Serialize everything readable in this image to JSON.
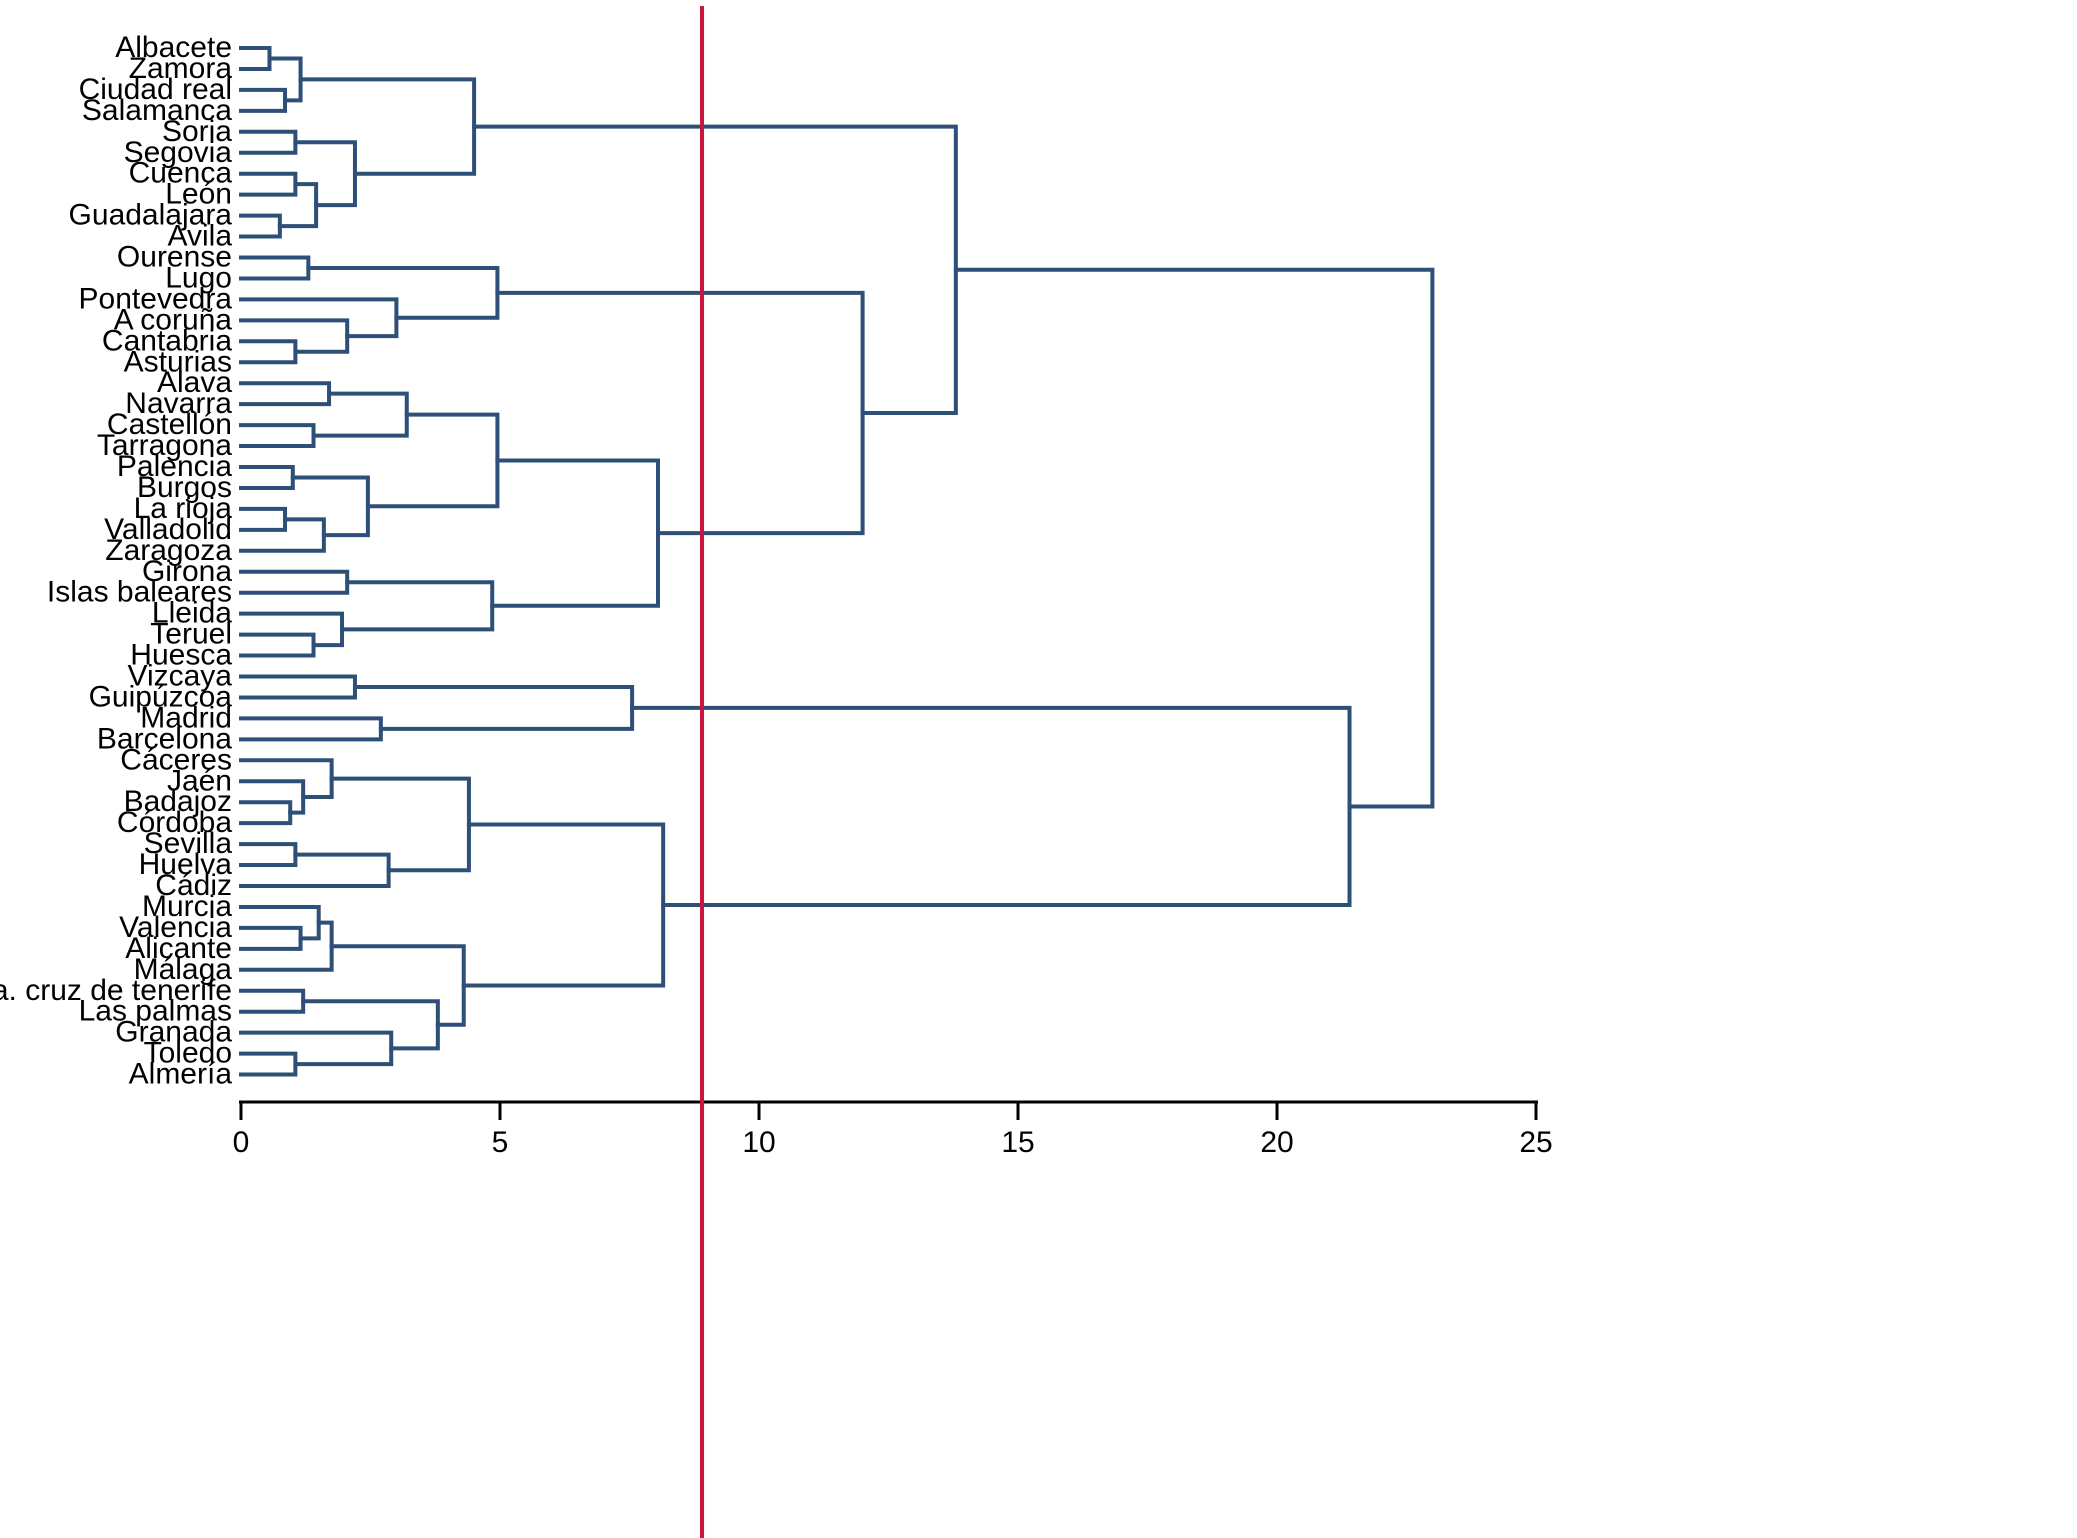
{
  "chart_data": {
    "type": "dendrogram",
    "title": "",
    "xlabel": "",
    "ylabel": "",
    "orientation": "horizontal",
    "xlim": [
      0,
      25
    ],
    "x_ticks": [
      "0",
      "5",
      "10",
      "15",
      "20",
      "25"
    ],
    "cut_height": 8.9,
    "colors": {
      "links": "#2d4f78",
      "cut_line": "#c8163f",
      "axis": "#000000"
    },
    "leaves": [
      "Albacete",
      "Zamora",
      "Ciudad real",
      "Salamanca",
      "Soria",
      "Segovia",
      "Cuenca",
      "León",
      "Guadalajara",
      "Avila",
      "Ourense",
      "Lugo",
      "Pontevedra",
      "A coruña",
      "Cantabria",
      "Asturias",
      "Alava",
      "Navarra",
      "Castellón",
      "Tarragona",
      "Palencia",
      "Burgos",
      "La rioja",
      "Valladolid",
      "Zaragoza",
      "Girona",
      "Islas baleares",
      "Lleida",
      "Teruel",
      "Huesca",
      "Vizcaya",
      "Guipúzcoa",
      "Madrid",
      "Barcelona",
      "Cáceres",
      "Jaén",
      "Badajoz",
      "Córdoba",
      "Sevilla",
      "Huelva",
      "Cádiz",
      "Murcia",
      "Valencia",
      "Alicante",
      "Málaga",
      "Sta. cruz de tenerife",
      "Las palmas",
      "Granada",
      "Toledo",
      "Almería"
    ],
    "merges": [
      [
        0,
        1,
        0.55
      ],
      [
        2,
        3,
        0.85
      ],
      [
        50,
        51,
        1.15
      ],
      [
        4,
        5,
        1.05
      ],
      [
        6,
        7,
        1.05
      ],
      [
        8,
        9,
        0.75
      ],
      [
        54,
        55,
        1.45
      ],
      [
        53,
        56,
        2.2
      ],
      [
        52,
        57,
        4.5
      ],
      [
        10,
        11,
        1.3
      ],
      [
        14,
        15,
        1.05
      ],
      [
        13,
        60,
        2.05
      ],
      [
        12,
        61,
        3.0
      ],
      [
        59,
        62,
        4.95
      ],
      [
        16,
        17,
        1.7
      ],
      [
        18,
        19,
        1.4
      ],
      [
        64,
        65,
        3.2
      ],
      [
        20,
        21,
        1.0
      ],
      [
        22,
        23,
        0.85
      ],
      [
        24,
        68,
        1.6
      ],
      [
        67,
        69,
        2.45
      ],
      [
        66,
        70,
        4.95
      ],
      [
        25,
        26,
        2.05
      ],
      [
        28,
        29,
        1.4
      ],
      [
        27,
        73,
        1.95
      ],
      [
        72,
        74,
        4.85
      ],
      [
        71,
        75,
        8.05
      ],
      [
        63,
        76,
        12.0
      ],
      [
        58,
        77,
        13.8
      ],
      [
        30,
        31,
        2.2
      ],
      [
        32,
        33,
        2.7
      ],
      [
        79,
        80,
        7.55
      ],
      [
        36,
        37,
        0.95
      ],
      [
        35,
        82,
        1.2
      ],
      [
        34,
        83,
        1.75
      ],
      [
        38,
        39,
        1.05
      ],
      [
        40,
        85,
        2.85
      ],
      [
        84,
        86,
        4.4
      ],
      [
        42,
        43,
        1.15
      ],
      [
        41,
        88,
        1.5
      ],
      [
        44,
        89,
        1.75
      ],
      [
        45,
        46,
        1.2
      ],
      [
        48,
        49,
        1.05
      ],
      [
        47,
        92,
        2.9
      ],
      [
        91,
        93,
        3.8
      ],
      [
        90,
        94,
        4.3
      ],
      [
        87,
        95,
        8.15
      ],
      [
        81,
        96,
        21.4
      ],
      [
        78,
        97,
        23.0
      ]
    ]
  }
}
